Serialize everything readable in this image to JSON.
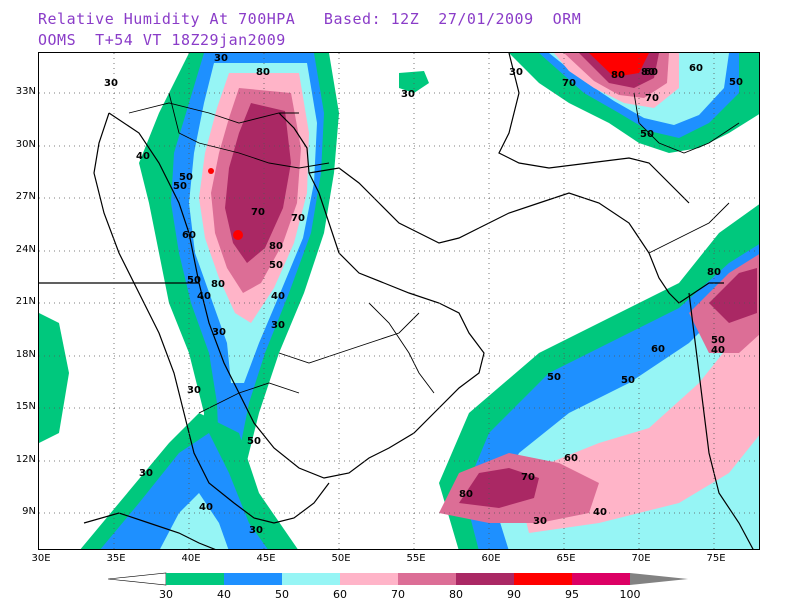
{
  "title": {
    "line1": "Relative Humidity At 700HPA   Based: 12Z  27/01/2009  ORM",
    "line2": "OOMS  T+54 VT 18Z29jan2009"
  },
  "map": {
    "lat_labels": [
      "33N",
      "30N",
      "27N",
      "24N",
      "21N",
      "18N",
      "15N",
      "12N",
      "9N"
    ],
    "lon_labels": [
      "30E",
      "35E",
      "40E",
      "45E",
      "50E",
      "55E",
      "60E",
      "65E",
      "70E",
      "75E"
    ],
    "contour_labels": [
      "30",
      "30",
      "30",
      "30",
      "40",
      "50",
      "50",
      "60",
      "70",
      "70",
      "80",
      "80",
      "80",
      "50",
      "40",
      "30",
      "30",
      "30",
      "30",
      "40",
      "50",
      "50",
      "60",
      "70",
      "70",
      "80",
      "80",
      "50",
      "50",
      "60",
      "70",
      "80",
      "40",
      "50",
      "60",
      "80",
      "30",
      "40",
      "50",
      "60",
      "50",
      "40",
      "30"
    ]
  },
  "legend": {
    "ticks": [
      "30",
      "40",
      "50",
      "60",
      "70",
      "80",
      "90",
      "95",
      "100"
    ],
    "colors": [
      "#00c87d",
      "#1e90ff",
      "#96f5f5",
      "#ffb4c8",
      "#dc6e96",
      "#aa2864",
      "#ff0000",
      "#dc0064",
      "#828282"
    ]
  }
}
